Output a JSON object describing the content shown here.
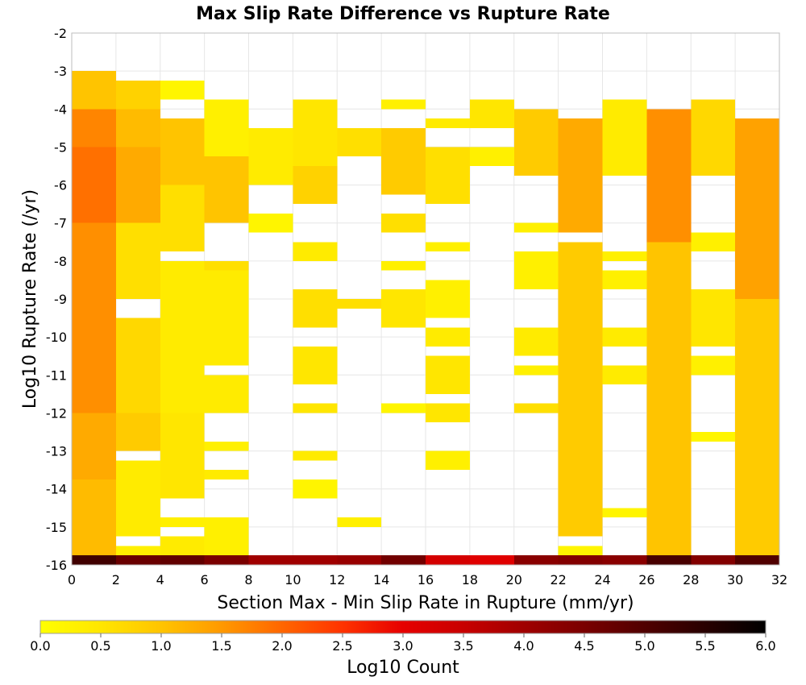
{
  "chart_data": {
    "type": "heatmap",
    "title": "Max Slip Rate Difference vs Rupture Rate",
    "xlabel": "Section Max - Min Slip Rate in Rupture (mm/yr)",
    "ylabel": "Log10 Rupture Rate (/yr)",
    "xlim": [
      0,
      32
    ],
    "ylim": [
      -16,
      -2
    ],
    "x_ticks": [
      "0",
      "2",
      "4",
      "6",
      "8",
      "10",
      "12",
      "14",
      "16",
      "18",
      "20",
      "22",
      "24",
      "26",
      "28",
      "30",
      "32"
    ],
    "y_ticks": [
      "-2",
      "-3",
      "-4",
      "-5",
      "-6",
      "-7",
      "-8",
      "-9",
      "-10",
      "-11",
      "-12",
      "-13",
      "-14",
      "-15",
      "-16"
    ],
    "grid": true,
    "x_bin_width": 2,
    "y_bin_height": 0.25,
    "colorbar": {
      "label": "Log10 Count",
      "range": [
        0,
        6
      ],
      "ticks": [
        "0.0",
        "0.5",
        "1.0",
        "1.5",
        "2.0",
        "2.5",
        "3.0",
        "3.5",
        "4.0",
        "4.5",
        "5.0",
        "5.5",
        "6.0"
      ],
      "colormap": [
        {
          "v": 0.0,
          "color": "#ffff00"
        },
        {
          "v": 0.5,
          "color": "#ffe600"
        },
        {
          "v": 1.0,
          "color": "#ffc400"
        },
        {
          "v": 1.5,
          "color": "#ff9900"
        },
        {
          "v": 2.0,
          "color": "#ff6600"
        },
        {
          "v": 2.5,
          "color": "#ff3300"
        },
        {
          "v": 3.0,
          "color": "#e60000"
        },
        {
          "v": 3.5,
          "color": "#c80000"
        },
        {
          "v": 4.0,
          "color": "#a00000"
        },
        {
          "v": 4.5,
          "color": "#7a0000"
        },
        {
          "v": 5.0,
          "color": "#500000"
        },
        {
          "v": 5.5,
          "color": "#280000"
        },
        {
          "v": 6.0,
          "color": "#000000"
        }
      ]
    },
    "columns": [
      {
        "x": 0,
        "segments": [
          {
            "y0": -16.0,
            "y1": -15.75,
            "v": 5.2
          },
          {
            "y0": -15.75,
            "y1": -13.75,
            "v": 1.1
          },
          {
            "y0": -13.75,
            "y1": -12.0,
            "v": 1.3
          },
          {
            "y0": -12.0,
            "y1": -8.0,
            "v": 1.6
          },
          {
            "y0": -8.0,
            "y1": -7.0,
            "v": 1.6
          },
          {
            "y0": -7.0,
            "y1": -5.0,
            "v": 1.9
          },
          {
            "y0": -5.0,
            "y1": -4.0,
            "v": 1.7
          },
          {
            "y0": -4.0,
            "y1": -3.0,
            "v": 1.0
          }
        ]
      },
      {
        "x": 2,
        "segments": [
          {
            "y0": -16.0,
            "y1": -15.75,
            "v": 4.7
          },
          {
            "y0": -15.75,
            "y1": -15.5,
            "v": 0.3
          },
          {
            "y0": -15.25,
            "y1": -13.25,
            "v": 0.4
          },
          {
            "y0": -13.0,
            "y1": -12.0,
            "v": 0.9
          },
          {
            "y0": -12.0,
            "y1": -9.5,
            "v": 0.7
          },
          {
            "y0": -9.0,
            "y1": -7.0,
            "v": 0.6
          },
          {
            "y0": -7.0,
            "y1": -5.0,
            "v": 1.3
          },
          {
            "y0": -5.0,
            "y1": -4.0,
            "v": 1.1
          },
          {
            "y0": -4.0,
            "y1": -3.25,
            "v": 0.8
          }
        ]
      },
      {
        "x": 4,
        "segments": [
          {
            "y0": -16.0,
            "y1": -15.75,
            "v": 4.8
          },
          {
            "y0": -15.75,
            "y1": -15.25,
            "v": 0.4
          },
          {
            "y0": -15.0,
            "y1": -14.75,
            "v": 0.3
          },
          {
            "y0": -14.25,
            "y1": -12.0,
            "v": 0.5
          },
          {
            "y0": -12.0,
            "y1": -8.0,
            "v": 0.4
          },
          {
            "y0": -7.75,
            "y1": -6.0,
            "v": 0.6
          },
          {
            "y0": -6.0,
            "y1": -4.25,
            "v": 1.0
          },
          {
            "y0": -3.75,
            "y1": -3.25,
            "v": 0.2
          }
        ]
      },
      {
        "x": 6,
        "segments": [
          {
            "y0": -16.0,
            "y1": -15.75,
            "v": 4.5
          },
          {
            "y0": -15.75,
            "y1": -14.75,
            "v": 0.3
          },
          {
            "y0": -13.75,
            "y1": -13.5,
            "v": 0.4
          },
          {
            "y0": -13.0,
            "y1": -12.75,
            "v": 0.3
          },
          {
            "y0": -12.0,
            "y1": -11.0,
            "v": 0.4
          },
          {
            "y0": -10.75,
            "y1": -8.25,
            "v": 0.4
          },
          {
            "y0": -8.25,
            "y1": -8.0,
            "v": 0.6
          },
          {
            "y0": -7.0,
            "y1": -5.25,
            "v": 1.0
          },
          {
            "y0": -5.25,
            "y1": -3.75,
            "v": 0.3
          }
        ]
      },
      {
        "x": 8,
        "segments": [
          {
            "y0": -16.0,
            "y1": -15.75,
            "v": 4.0
          },
          {
            "y0": -7.25,
            "y1": -6.75,
            "v": 0.2
          },
          {
            "y0": -6.0,
            "y1": -4.5,
            "v": 0.4
          }
        ]
      },
      {
        "x": 10,
        "segments": [
          {
            "y0": -16.0,
            "y1": -15.75,
            "v": 4.0
          },
          {
            "y0": -14.25,
            "y1": -13.75,
            "v": 0.2
          },
          {
            "y0": -13.25,
            "y1": -13.0,
            "v": 0.4
          },
          {
            "y0": -12.0,
            "y1": -11.75,
            "v": 0.5
          },
          {
            "y0": -11.25,
            "y1": -10.25,
            "v": 0.5
          },
          {
            "y0": -9.75,
            "y1": -8.75,
            "v": 0.6
          },
          {
            "y0": -8.0,
            "y1": -7.5,
            "v": 0.4
          },
          {
            "y0": -6.5,
            "y1": -5.5,
            "v": 0.8
          },
          {
            "y0": -5.5,
            "y1": -3.75,
            "v": 0.5
          }
        ]
      },
      {
        "x": 12,
        "segments": [
          {
            "y0": -16.0,
            "y1": -15.75,
            "v": 4.1
          },
          {
            "y0": -15.0,
            "y1": -14.75,
            "v": 0.3
          },
          {
            "y0": -9.25,
            "y1": -9.0,
            "v": 0.6
          },
          {
            "y0": -5.25,
            "y1": -4.5,
            "v": 0.6
          }
        ]
      },
      {
        "x": 14,
        "segments": [
          {
            "y0": -16.0,
            "y1": -15.75,
            "v": 4.6
          },
          {
            "y0": -12.0,
            "y1": -11.75,
            "v": 0.2
          },
          {
            "y0": -9.75,
            "y1": -8.75,
            "v": 0.5
          },
          {
            "y0": -8.25,
            "y1": -8.0,
            "v": 0.3
          },
          {
            "y0": -7.25,
            "y1": -6.75,
            "v": 0.6
          },
          {
            "y0": -6.25,
            "y1": -4.5,
            "v": 0.9
          },
          {
            "y0": -4.0,
            "y1": -3.75,
            "v": 0.3
          }
        ]
      },
      {
        "x": 16,
        "segments": [
          {
            "y0": -16.0,
            "y1": -15.75,
            "v": 3.3
          },
          {
            "y0": -13.5,
            "y1": -13.0,
            "v": 0.3
          },
          {
            "y0": -12.25,
            "y1": -11.75,
            "v": 0.5
          },
          {
            "y0": -11.5,
            "y1": -10.5,
            "v": 0.5
          },
          {
            "y0": -10.25,
            "y1": -9.75,
            "v": 0.4
          },
          {
            "y0": -9.5,
            "y1": -8.5,
            "v": 0.3
          },
          {
            "y0": -7.75,
            "y1": -7.5,
            "v": 0.3
          },
          {
            "y0": -6.5,
            "y1": -5.0,
            "v": 0.6
          },
          {
            "y0": -4.5,
            "y1": -4.25,
            "v": 0.4
          }
        ]
      },
      {
        "x": 18,
        "segments": [
          {
            "y0": -16.0,
            "y1": -15.75,
            "v": 3.1
          },
          {
            "y0": -5.5,
            "y1": -5.0,
            "v": 0.3
          },
          {
            "y0": -4.5,
            "y1": -3.75,
            "v": 0.5
          }
        ]
      },
      {
        "x": 20,
        "segments": [
          {
            "y0": -16.0,
            "y1": -15.75,
            "v": 4.3
          },
          {
            "y0": -12.0,
            "y1": -11.75,
            "v": 0.6
          },
          {
            "y0": -11.0,
            "y1": -10.75,
            "v": 0.3
          },
          {
            "y0": -10.5,
            "y1": -9.75,
            "v": 0.4
          },
          {
            "y0": -8.75,
            "y1": -7.75,
            "v": 0.3
          },
          {
            "y0": -7.25,
            "y1": -7.0,
            "v": 0.3
          },
          {
            "y0": -5.75,
            "y1": -4.0,
            "v": 0.9
          }
        ]
      },
      {
        "x": 22,
        "segments": [
          {
            "y0": -16.0,
            "y1": -15.75,
            "v": 4.4
          },
          {
            "y0": -15.75,
            "y1": -15.5,
            "v": 0.2
          },
          {
            "y0": -15.25,
            "y1": -7.5,
            "v": 0.9
          },
          {
            "y0": -7.25,
            "y1": -4.25,
            "v": 1.3
          }
        ]
      },
      {
        "x": 24,
        "segments": [
          {
            "y0": -16.0,
            "y1": -15.75,
            "v": 4.3
          },
          {
            "y0": -14.75,
            "y1": -14.5,
            "v": 0.2
          },
          {
            "y0": -11.25,
            "y1": -10.75,
            "v": 0.4
          },
          {
            "y0": -10.25,
            "y1": -9.75,
            "v": 0.4
          },
          {
            "y0": -8.75,
            "y1": -8.25,
            "v": 0.3
          },
          {
            "y0": -8.0,
            "y1": -7.75,
            "v": 0.3
          },
          {
            "y0": -5.75,
            "y1": -3.75,
            "v": 0.4
          }
        ]
      },
      {
        "x": 26,
        "segments": [
          {
            "y0": -16.0,
            "y1": -15.75,
            "v": 5.1
          },
          {
            "y0": -15.75,
            "y1": -7.5,
            "v": 1.0
          },
          {
            "y0": -7.5,
            "y1": -4.0,
            "v": 1.6
          }
        ]
      },
      {
        "x": 28,
        "segments": [
          {
            "y0": -16.0,
            "y1": -15.75,
            "v": 4.4
          },
          {
            "y0": -12.75,
            "y1": -12.5,
            "v": 0.2
          },
          {
            "y0": -11.0,
            "y1": -10.5,
            "v": 0.3
          },
          {
            "y0": -10.25,
            "y1": -8.75,
            "v": 0.5
          },
          {
            "y0": -7.75,
            "y1": -7.25,
            "v": 0.3
          },
          {
            "y0": -5.75,
            "y1": -3.75,
            "v": 0.7
          }
        ]
      },
      {
        "x": 30,
        "segments": [
          {
            "y0": -16.0,
            "y1": -15.75,
            "v": 5.0
          },
          {
            "y0": -15.75,
            "y1": -9.0,
            "v": 0.9
          },
          {
            "y0": -9.0,
            "y1": -4.25,
            "v": 1.4
          }
        ]
      }
    ]
  }
}
